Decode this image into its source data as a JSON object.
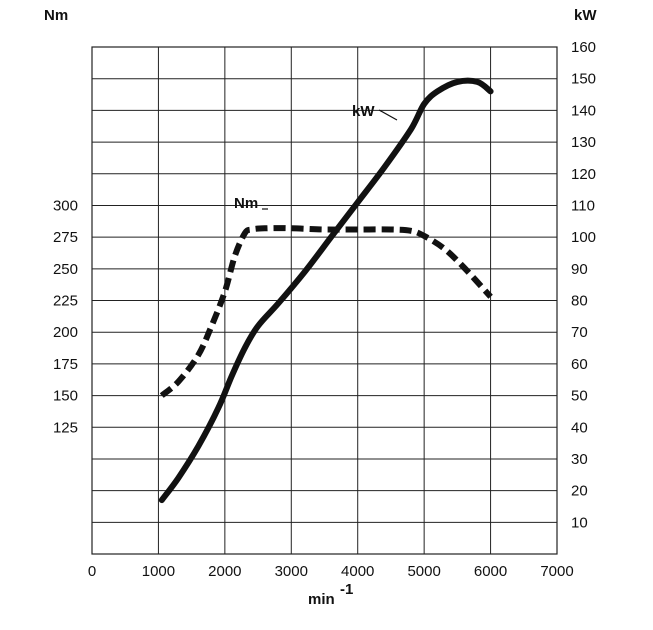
{
  "chart_data": {
    "type": "line",
    "title": "",
    "xlabel": "min",
    "xlabel_superscript": "-1",
    "xlim": [
      0,
      7000
    ],
    "x_ticks": [
      "0",
      "1000",
      "2000",
      "3000",
      "4000",
      "5000",
      "6000",
      "7000"
    ],
    "y_left_label": "Nm",
    "y_left_ticks": [
      "125",
      "150",
      "175",
      "200",
      "225",
      "250",
      "275",
      "300"
    ],
    "y_right_label": "kW",
    "y_right_ticks": [
      "10",
      "20",
      "30",
      "40",
      "50",
      "60",
      "70",
      "80",
      "90",
      "100",
      "110",
      "120",
      "130",
      "140",
      "150",
      "160"
    ],
    "y_right_lim": [
      0,
      160
    ],
    "grid": true,
    "series": [
      {
        "name": "kW",
        "axis": "right",
        "style": "solid",
        "x": [
          1050,
          1300,
          1600,
          1900,
          2100,
          2300,
          2500,
          2800,
          3200,
          3600,
          4000,
          4400,
          4800,
          5000,
          5200,
          5500,
          5800,
          6000
        ],
        "y": [
          17,
          24,
          34,
          46,
          56,
          65,
          72,
          79,
          89,
          100,
          111,
          122,
          134,
          142,
          146,
          149,
          149,
          146
        ]
      },
      {
        "name": "Nm",
        "axis": "left",
        "style": "dashed",
        "x": [
          1050,
          1300,
          1600,
          1800,
          2000,
          2150,
          2300,
          2400,
          2600,
          3000,
          3500,
          4000,
          4500,
          4800,
          5000,
          5300,
          5600,
          6000
        ],
        "y": [
          150,
          161,
          182,
          205,
          232,
          260,
          278,
          281,
          282,
          282,
          281,
          281,
          281,
          280,
          276,
          266,
          251,
          228
        ]
      }
    ],
    "annotations": [
      {
        "text": "kW",
        "series": "kW"
      },
      {
        "text": "Nm",
        "series": "Nm"
      }
    ]
  }
}
